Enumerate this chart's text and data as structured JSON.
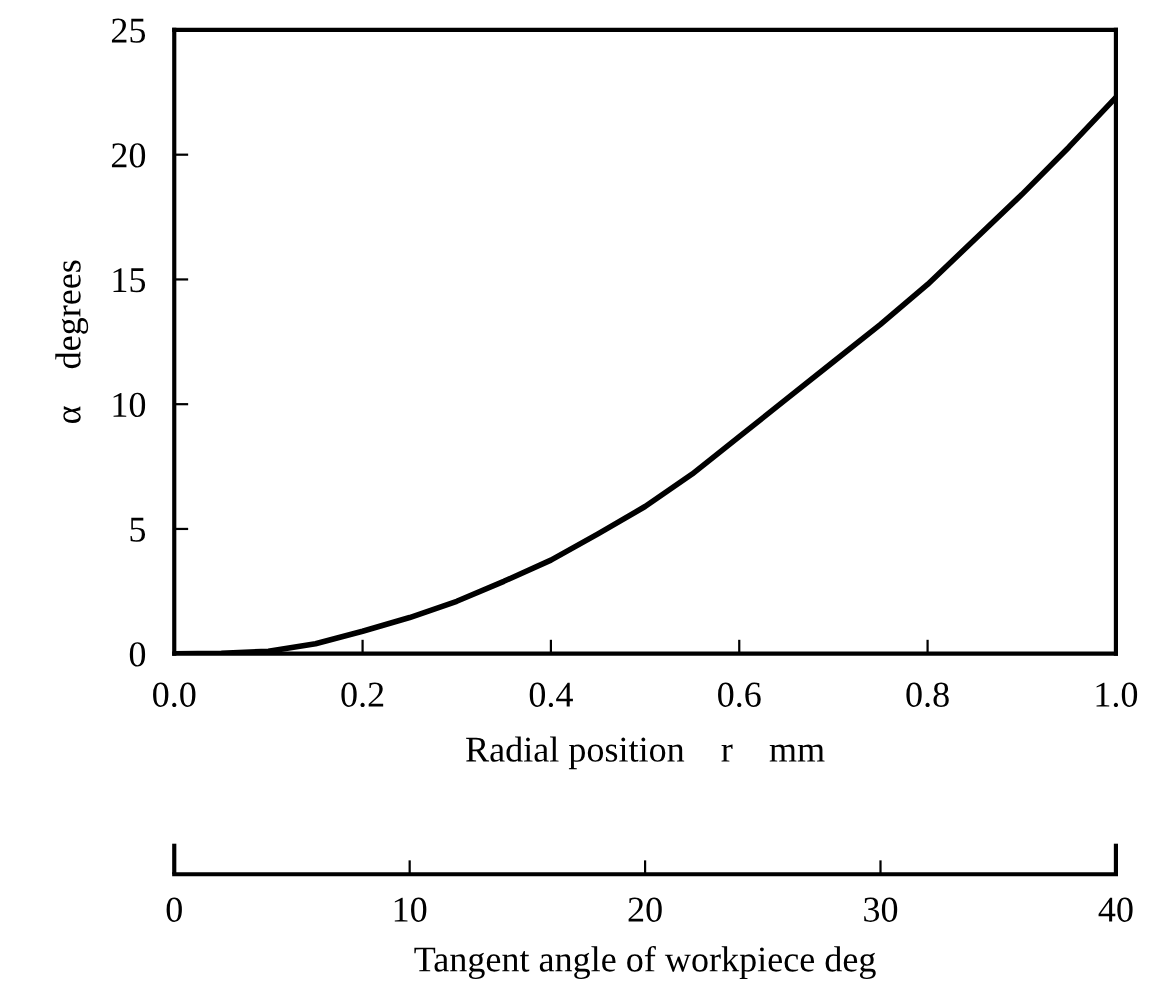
{
  "chart_data": {
    "type": "line",
    "xlabel": "Radial position    r    mm",
    "ylabel": "α    degrees",
    "x2label": "Tangent angle of workpiece deg",
    "series": [
      {
        "color": "#000000",
        "x": [
          0.0,
          0.05,
          0.1,
          0.15,
          0.2,
          0.25,
          0.3,
          0.35,
          0.4,
          0.45,
          0.5,
          0.55,
          0.6,
          0.65,
          0.7,
          0.75,
          0.8,
          0.85,
          0.9,
          0.95,
          1.0
        ],
        "values": [
          0.0,
          0.02,
          0.1,
          0.4,
          0.9,
          1.45,
          2.1,
          2.9,
          3.75,
          4.8,
          5.9,
          7.2,
          8.7,
          10.2,
          11.7,
          13.2,
          14.8,
          16.6,
          18.4,
          20.3,
          22.3
        ]
      }
    ],
    "xlim": [
      0,
      1
    ],
    "xticks": [
      {
        "value": 0,
        "label": "0.0"
      },
      {
        "value": 0.2,
        "label": "0.2"
      },
      {
        "value": 0.4,
        "label": "0.4"
      },
      {
        "value": 0.6,
        "label": "0.6"
      },
      {
        "value": 0.8,
        "label": "0.8"
      },
      {
        "value": 1,
        "label": "1.0"
      }
    ],
    "ylim": [
      0,
      25
    ],
    "yticks": [
      0,
      5,
      10,
      15,
      20,
      25
    ],
    "x2lim": [
      0,
      40
    ],
    "x2ticks": [
      0,
      10,
      20,
      30,
      40
    ],
    "grid": false,
    "legend": false,
    "marker": "none",
    "line_style": "solid"
  }
}
